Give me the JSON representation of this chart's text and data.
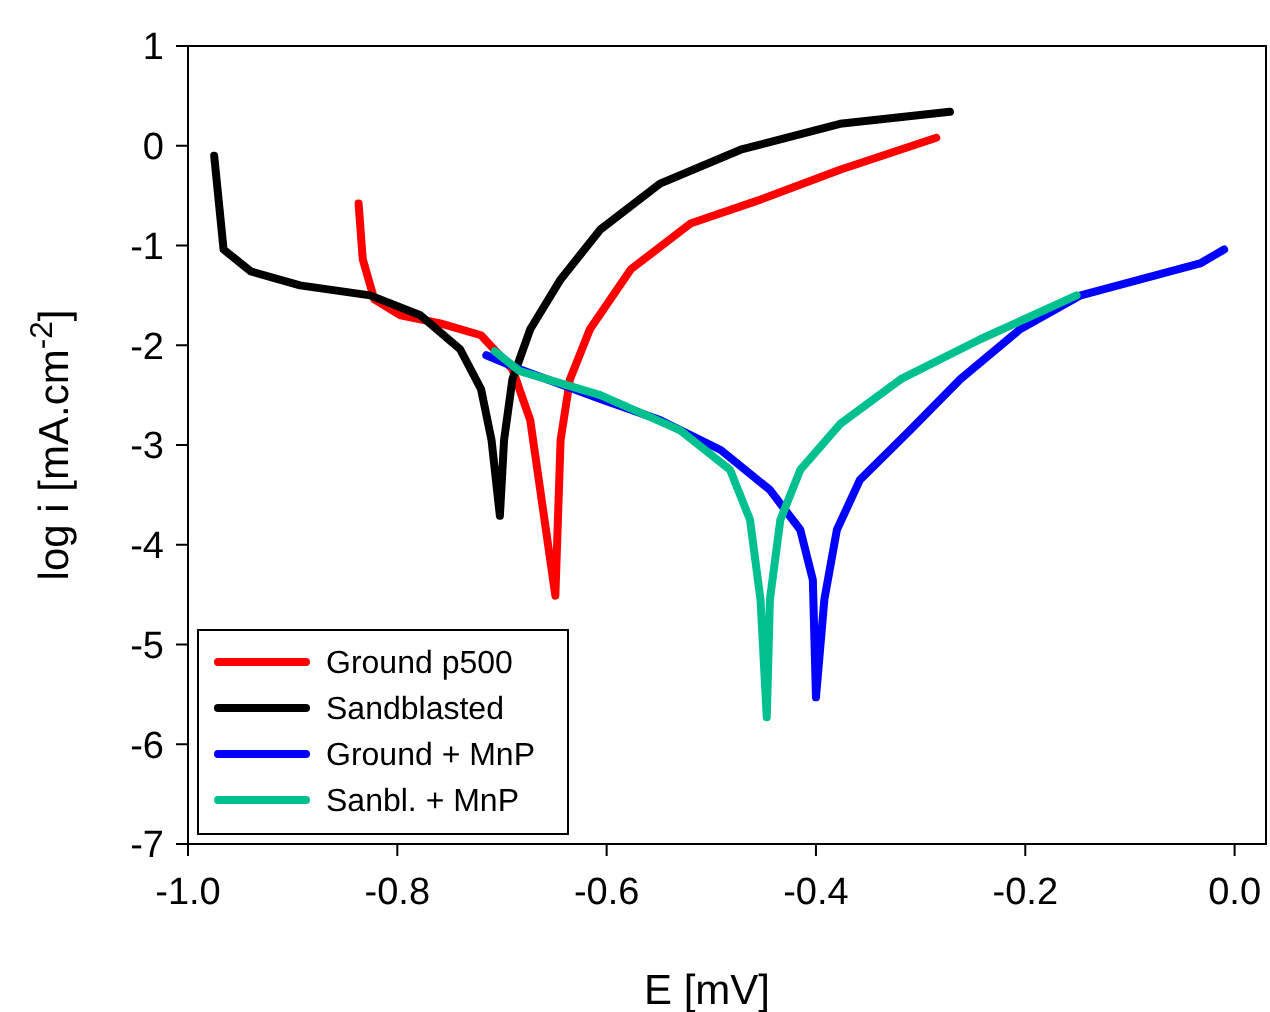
{
  "chart_data": {
    "type": "line",
    "xlabel": "E [mV]",
    "ylabel": "log i [mA.cm$^{-2}$]",
    "xlim": [
      -1.0,
      0.03
    ],
    "ylim": [
      -7,
      1
    ],
    "xticks": [
      {
        "value": -1,
        "label": "-1.0"
      },
      {
        "value": -0.8,
        "label": "-0.8"
      },
      {
        "value": -0.6,
        "label": "-0.6"
      },
      {
        "value": -0.4,
        "label": "-0.4"
      },
      {
        "value": -0.2,
        "label": "-0.2"
      },
      {
        "value": 0,
        "label": "0.0"
      }
    ],
    "yticks": [
      -7,
      -6,
      -5,
      -4,
      -3,
      -2,
      -1,
      0,
      1
    ],
    "grid": false,
    "legend": "bottom left",
    "line_style": "solid",
    "marker": "none",
    "series": [
      {
        "name": "Ground p500",
        "color": "#ff0000",
        "x": [
          -0.837,
          -0.833,
          -0.822,
          -0.797,
          -0.759,
          -0.72,
          -0.69,
          -0.673,
          -0.649,
          -0.644,
          -0.635,
          -0.616,
          -0.577,
          -0.52,
          -0.453,
          -0.377,
          -0.285
        ],
        "values": [
          -0.58,
          -1.14,
          -1.54,
          -1.7,
          -1.78,
          -1.9,
          -2.24,
          -2.75,
          -4.51,
          -2.95,
          -2.34,
          -1.84,
          -1.24,
          -0.78,
          -0.54,
          -0.24,
          0.08
        ]
      },
      {
        "name": "Sandblasted",
        "color": "#000000",
        "x": [
          -0.975,
          -0.966,
          -0.94,
          -0.893,
          -0.826,
          -0.778,
          -0.74,
          -0.72,
          -0.71,
          -0.702,
          -0.698,
          -0.69,
          -0.673,
          -0.644,
          -0.606,
          -0.549,
          -0.472,
          -0.377,
          -0.272
        ],
        "values": [
          -0.1,
          -1.04,
          -1.26,
          -1.4,
          -1.5,
          -1.7,
          -2.04,
          -2.44,
          -2.95,
          -3.71,
          -2.95,
          -2.34,
          -1.84,
          -1.34,
          -0.84,
          -0.38,
          -0.04,
          0.22,
          0.34
        ]
      },
      {
        "name": "Ground + MnP",
        "color": "#0000ff",
        "x": [
          -0.715,
          -0.683,
          -0.606,
          -0.549,
          -0.491,
          -0.444,
          -0.415,
          -0.403,
          -0.4,
          -0.392,
          -0.38,
          -0.358,
          -0.31,
          -0.262,
          -0.205,
          -0.147,
          -0.09,
          -0.033,
          -0.01
        ],
        "values": [
          -2.1,
          -2.24,
          -2.54,
          -2.75,
          -3.05,
          -3.45,
          -3.85,
          -4.35,
          -5.53,
          -4.55,
          -3.85,
          -3.35,
          -2.85,
          -2.34,
          -1.84,
          -1.5,
          -1.34,
          -1.18,
          -1.04
        ]
      },
      {
        "name": "Sanbl. + MnP",
        "color": "#00c090",
        "x": [
          -0.707,
          -0.683,
          -0.606,
          -0.53,
          -0.482,
          -0.463,
          -0.453,
          -0.447,
          -0.444,
          -0.434,
          -0.415,
          -0.377,
          -0.319,
          -0.243,
          -0.151
        ],
        "values": [
          -2.06,
          -2.26,
          -2.5,
          -2.85,
          -3.25,
          -3.75,
          -4.55,
          -5.73,
          -4.55,
          -3.75,
          -3.25,
          -2.79,
          -2.34,
          -1.94,
          -1.5
        ]
      }
    ]
  }
}
